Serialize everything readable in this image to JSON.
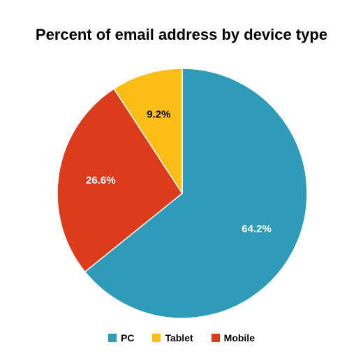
{
  "chart_data": {
    "type": "pie",
    "title": "Percent of email address by device type",
    "slices": [
      {
        "name": "PC",
        "value": 64.2,
        "label": "64.2%",
        "color": "#2e9cb9",
        "label_color": "#ffffff"
      },
      {
        "name": "Mobile",
        "value": 26.6,
        "label": "26.6%",
        "color": "#dc3b1c",
        "label_color": "#ffffff"
      },
      {
        "name": "Tablet",
        "value": 9.2,
        "label": "9.2%",
        "color": "#fdbd17",
        "label_color": "#000000"
      }
    ],
    "start_angle_deg": 0,
    "direction": "clockwise",
    "legend": {
      "position": "bottom",
      "items": [
        {
          "name": "PC",
          "color": "#2e9cb9"
        },
        {
          "name": "Tablet",
          "color": "#fdbd17"
        },
        {
          "name": "Mobile",
          "color": "#dc3b1c"
        }
      ]
    }
  }
}
